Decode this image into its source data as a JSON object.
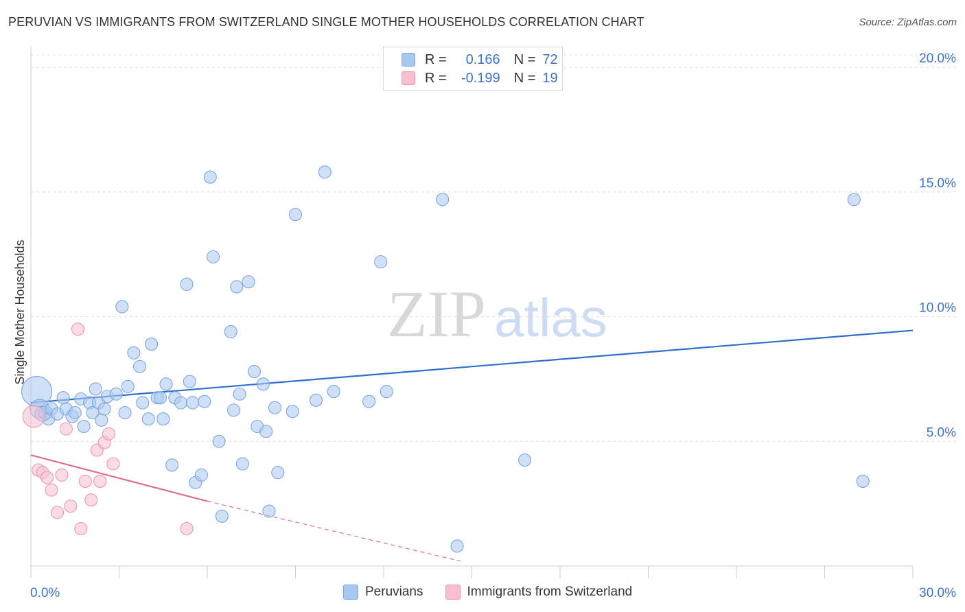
{
  "header": {
    "title": "PERUVIAN VS IMMIGRANTS FROM SWITZERLAND SINGLE MOTHER HOUSEHOLDS CORRELATION CHART",
    "source": "Source: ZipAtlas.com"
  },
  "watermark": {
    "zip": "ZIP",
    "atlas": "atlas"
  },
  "legend_top": {
    "rows": [
      {
        "r_label": "R =",
        "r_value": "0.166",
        "n_label": "N =",
        "n_value": "72",
        "color": "#a9c8f0",
        "border": "#7aa6e0"
      },
      {
        "r_label": "R =",
        "r_value": "-0.199",
        "n_label": "N =",
        "n_value": "19",
        "color": "#f7bfd0",
        "border": "#ee94ae"
      }
    ]
  },
  "legend_bottom": {
    "items": [
      {
        "label": "Peruvians",
        "color": "#a9c8f0",
        "border": "#7aa6e0"
      },
      {
        "label": "Immigrants from Switzerland",
        "color": "#f7bfd0",
        "border": "#ee94ae"
      }
    ]
  },
  "chart_data": {
    "type": "scatter",
    "title": "PERUVIAN VS IMMIGRANTS FROM SWITZERLAND SINGLE MOTHER HOUSEHOLDS CORRELATION CHART",
    "xlabel": "",
    "ylabel": "Single Mother Households",
    "xlim": [
      0,
      30
    ],
    "ylim": [
      0,
      20.5
    ],
    "x_tick_labels": [
      "0.0%",
      "30.0%"
    ],
    "y_ticks": [
      5,
      10,
      15,
      20
    ],
    "y_tick_labels": [
      "5.0%",
      "10.0%",
      "15.0%",
      "20.0%"
    ],
    "grid": true,
    "series": [
      {
        "name": "Peruvians",
        "color": "#7aa6e0",
        "fill": "#a9c8f0",
        "line_color": "#2f6fcc",
        "trend": {
          "x": [
            0,
            30
          ],
          "y": [
            6.55,
            9.45
          ]
        },
        "points": [
          {
            "x": 0.2,
            "y": 7.0,
            "s": 22
          },
          {
            "x": 0.3,
            "y": 6.3,
            "s": 14
          },
          {
            "x": 0.4,
            "y": 6.1,
            "s": 11
          },
          {
            "x": 0.5,
            "y": 6.15,
            "s": 10
          },
          {
            "x": 0.6,
            "y": 5.9,
            "s": 9
          },
          {
            "x": 0.7,
            "y": 6.3,
            "s": 9
          },
          {
            "x": 0.9,
            "y": 6.1,
            "s": 9
          },
          {
            "x": 1.1,
            "y": 6.75,
            "s": 9
          },
          {
            "x": 1.2,
            "y": 6.3,
            "s": 9
          },
          {
            "x": 1.4,
            "y": 6.0,
            "s": 9
          },
          {
            "x": 1.5,
            "y": 6.15,
            "s": 9
          },
          {
            "x": 1.7,
            "y": 6.7,
            "s": 9
          },
          {
            "x": 1.8,
            "y": 5.6,
            "s": 9
          },
          {
            "x": 2.0,
            "y": 6.55,
            "s": 9
          },
          {
            "x": 2.1,
            "y": 6.15,
            "s": 9
          },
          {
            "x": 2.2,
            "y": 7.1,
            "s": 9
          },
          {
            "x": 2.3,
            "y": 6.55,
            "s": 9
          },
          {
            "x": 2.4,
            "y": 5.85,
            "s": 9
          },
          {
            "x": 2.5,
            "y": 6.3,
            "s": 9
          },
          {
            "x": 2.6,
            "y": 6.8,
            "s": 9
          },
          {
            "x": 2.9,
            "y": 6.9,
            "s": 9
          },
          {
            "x": 3.1,
            "y": 10.4,
            "s": 9
          },
          {
            "x": 3.2,
            "y": 6.15,
            "s": 9
          },
          {
            "x": 3.3,
            "y": 7.2,
            "s": 9
          },
          {
            "x": 3.5,
            "y": 8.55,
            "s": 9
          },
          {
            "x": 3.7,
            "y": 8.0,
            "s": 9
          },
          {
            "x": 3.8,
            "y": 6.55,
            "s": 9
          },
          {
            "x": 4.0,
            "y": 5.9,
            "s": 9
          },
          {
            "x": 4.1,
            "y": 8.9,
            "s": 9
          },
          {
            "x": 4.3,
            "y": 6.75,
            "s": 9
          },
          {
            "x": 4.4,
            "y": 6.75,
            "s": 9
          },
          {
            "x": 4.5,
            "y": 5.9,
            "s": 9
          },
          {
            "x": 4.6,
            "y": 7.3,
            "s": 9
          },
          {
            "x": 4.8,
            "y": 4.05,
            "s": 9
          },
          {
            "x": 4.9,
            "y": 6.75,
            "s": 9
          },
          {
            "x": 5.1,
            "y": 6.55,
            "s": 9
          },
          {
            "x": 5.3,
            "y": 11.3,
            "s": 9
          },
          {
            "x": 5.4,
            "y": 7.4,
            "s": 9
          },
          {
            "x": 5.5,
            "y": 6.55,
            "s": 9
          },
          {
            "x": 5.6,
            "y": 3.35,
            "s": 9
          },
          {
            "x": 5.8,
            "y": 3.65,
            "s": 9
          },
          {
            "x": 5.9,
            "y": 6.6,
            "s": 9
          },
          {
            "x": 6.1,
            "y": 15.6,
            "s": 9
          },
          {
            "x": 6.2,
            "y": 12.4,
            "s": 9
          },
          {
            "x": 6.4,
            "y": 5.0,
            "s": 9
          },
          {
            "x": 6.5,
            "y": 2.0,
            "s": 9
          },
          {
            "x": 6.8,
            "y": 9.4,
            "s": 9
          },
          {
            "x": 6.9,
            "y": 6.25,
            "s": 9
          },
          {
            "x": 7.0,
            "y": 11.2,
            "s": 9
          },
          {
            "x": 7.1,
            "y": 6.9,
            "s": 9
          },
          {
            "x": 7.2,
            "y": 4.1,
            "s": 9
          },
          {
            "x": 7.4,
            "y": 11.4,
            "s": 9
          },
          {
            "x": 7.6,
            "y": 7.8,
            "s": 9
          },
          {
            "x": 7.7,
            "y": 5.6,
            "s": 9
          },
          {
            "x": 7.9,
            "y": 7.3,
            "s": 9
          },
          {
            "x": 8.0,
            "y": 5.4,
            "s": 9
          },
          {
            "x": 8.1,
            "y": 2.2,
            "s": 9
          },
          {
            "x": 8.3,
            "y": 6.35,
            "s": 9
          },
          {
            "x": 8.4,
            "y": 3.75,
            "s": 9
          },
          {
            "x": 8.9,
            "y": 6.2,
            "s": 9
          },
          {
            "x": 9.0,
            "y": 14.1,
            "s": 9
          },
          {
            "x": 9.7,
            "y": 6.65,
            "s": 9
          },
          {
            "x": 10.0,
            "y": 15.8,
            "s": 9
          },
          {
            "x": 10.3,
            "y": 7.0,
            "s": 9
          },
          {
            "x": 11.5,
            "y": 6.6,
            "s": 9
          },
          {
            "x": 11.9,
            "y": 12.2,
            "s": 9
          },
          {
            "x": 12.1,
            "y": 7.0,
            "s": 9
          },
          {
            "x": 14.0,
            "y": 14.7,
            "s": 9
          },
          {
            "x": 14.5,
            "y": 0.8,
            "s": 9
          },
          {
            "x": 16.8,
            "y": 4.25,
            "s": 9
          },
          {
            "x": 28.0,
            "y": 14.7,
            "s": 9
          },
          {
            "x": 28.3,
            "y": 3.4,
            "s": 9
          }
        ]
      },
      {
        "name": "Immigrants from Switzerland",
        "color": "#ee94ae",
        "fill": "#f7bfd0",
        "line_color": "#e06c93",
        "trend": {
          "x": [
            0,
            6.0
          ],
          "y": [
            4.45,
            2.6
          ]
        },
        "trend_dashed": {
          "x": [
            6.0,
            14.6
          ],
          "y": [
            2.6,
            0.2
          ]
        },
        "points": [
          {
            "x": 0.1,
            "y": 6.0,
            "s": 16
          },
          {
            "x": 0.25,
            "y": 3.85,
            "s": 9
          },
          {
            "x": 0.4,
            "y": 3.75,
            "s": 9
          },
          {
            "x": 0.55,
            "y": 3.55,
            "s": 9
          },
          {
            "x": 0.7,
            "y": 3.05,
            "s": 9
          },
          {
            "x": 0.9,
            "y": 2.15,
            "s": 9
          },
          {
            "x": 1.05,
            "y": 3.65,
            "s": 9
          },
          {
            "x": 1.2,
            "y": 5.5,
            "s": 9
          },
          {
            "x": 1.35,
            "y": 2.4,
            "s": 9
          },
          {
            "x": 1.6,
            "y": 9.5,
            "s": 9
          },
          {
            "x": 1.7,
            "y": 1.5,
            "s": 9
          },
          {
            "x": 1.85,
            "y": 3.4,
            "s": 9
          },
          {
            "x": 2.05,
            "y": 2.65,
            "s": 9
          },
          {
            "x": 2.25,
            "y": 4.65,
            "s": 9
          },
          {
            "x": 2.35,
            "y": 3.4,
            "s": 9
          },
          {
            "x": 2.5,
            "y": 4.95,
            "s": 9
          },
          {
            "x": 2.65,
            "y": 5.3,
            "s": 9
          },
          {
            "x": 2.8,
            "y": 4.1,
            "s": 9
          },
          {
            "x": 5.3,
            "y": 1.5,
            "s": 9
          }
        ]
      }
    ]
  }
}
